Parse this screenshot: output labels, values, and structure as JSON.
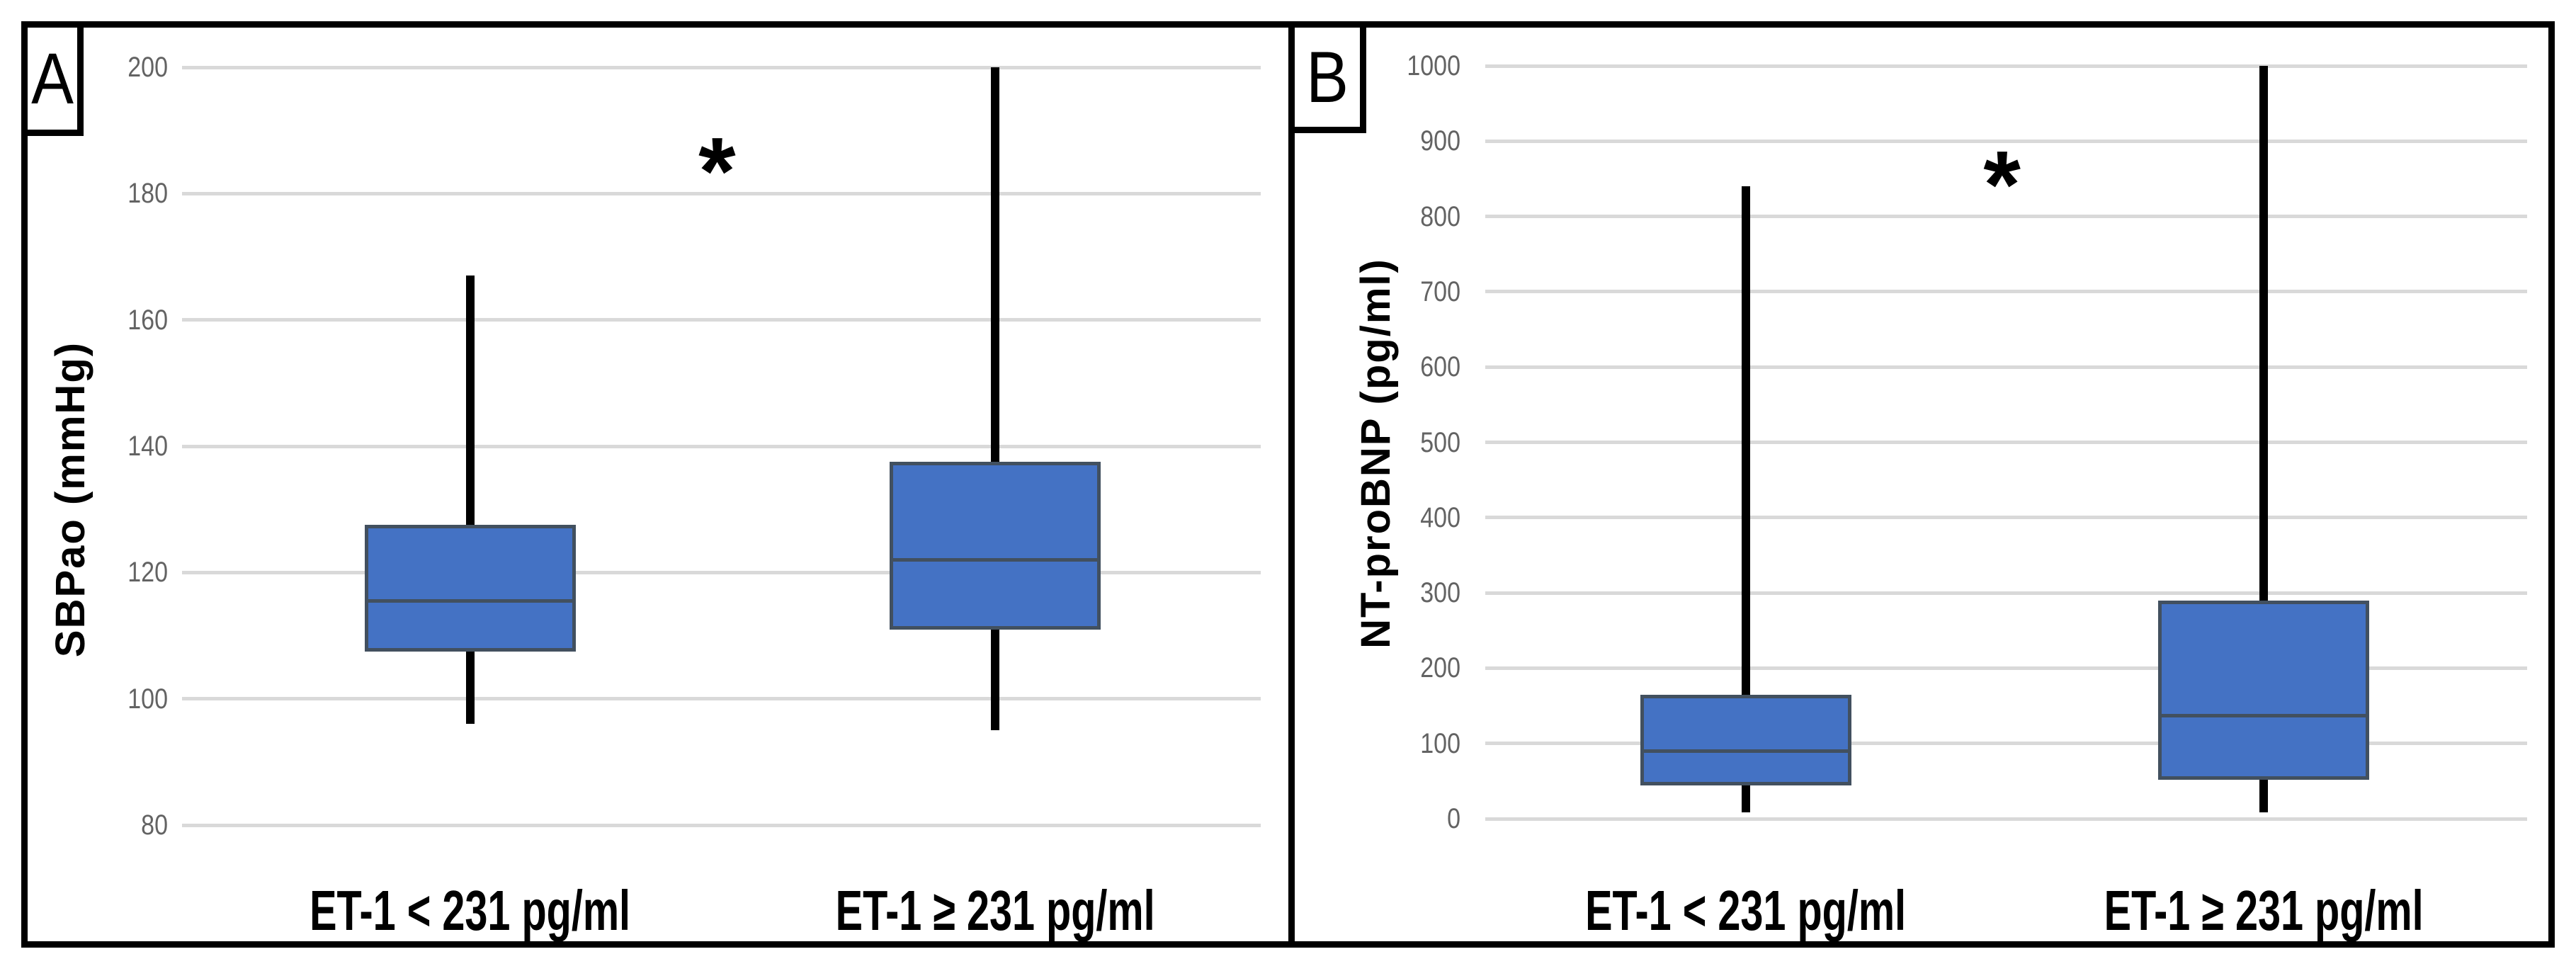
{
  "figure": {
    "panels": [
      {
        "panel_label": "A",
        "y_axis_title": "SBPao (mmHg)",
        "significance_marker": "*"
      },
      {
        "panel_label": "B",
        "y_axis_title": "NT-proBNP (pg/ml)",
        "significance_marker": "*"
      }
    ]
  },
  "chart_data": [
    {
      "type": "box",
      "panel": "A",
      "title": "",
      "xlabel": "",
      "ylabel": "SBPao (mmHg)",
      "ylim": [
        80,
        200
      ],
      "ytick_step": 20,
      "yticks": [
        200,
        180,
        160,
        140,
        120,
        100,
        80
      ],
      "grid": true,
      "legend": false,
      "categories": [
        "ET-1 < 231 pg/ml",
        "ET-1 ≥ 231 pg/ml"
      ],
      "series": [
        {
          "category": "ET-1 < 231 pg/ml",
          "whisker_low": 96,
          "q1": 107.5,
          "median": 115.5,
          "q3": 127.5,
          "whisker_high": 167
        },
        {
          "category": "ET-1 ≥ 231 pg/ml",
          "whisker_low": 95,
          "q1": 111,
          "median": 122,
          "q3": 137.5,
          "whisker_high": 200
        }
      ],
      "annotation": {
        "text": "*",
        "y_value": 186,
        "x_position": "between-categories"
      }
    },
    {
      "type": "box",
      "panel": "B",
      "title": "",
      "xlabel": "",
      "ylabel": "NT-proBNP (pg/ml)",
      "ylim": [
        0,
        1000
      ],
      "ytick_step": 100,
      "yticks": [
        1000,
        900,
        800,
        700,
        600,
        500,
        400,
        300,
        200,
        100,
        0
      ],
      "grid": true,
      "legend": false,
      "categories": [
        "ET-1 < 231 pg/ml",
        "ET-1 ≥ 231 pg/ml"
      ],
      "series": [
        {
          "category": "ET-1 < 231 pg/ml",
          "whisker_low": 8,
          "q1": 44,
          "median": 90,
          "q3": 165,
          "whisker_high": 840
        },
        {
          "category": "ET-1 ≥ 231 pg/ml",
          "whisker_low": 8,
          "q1": 52,
          "median": 137,
          "q3": 290,
          "whisker_high": 1000
        }
      ],
      "annotation": {
        "text": "*",
        "y_value": 863,
        "x_position": "between-categories"
      }
    }
  ],
  "colors": {
    "box_fill": "#4472C4",
    "box_border": "#42505F",
    "median_line": "#42505F",
    "whisker": "#000000",
    "gridline": "#D9D9D9",
    "tick_label": "#636363",
    "frame": "#000000",
    "background": "#FFFFFF"
  }
}
